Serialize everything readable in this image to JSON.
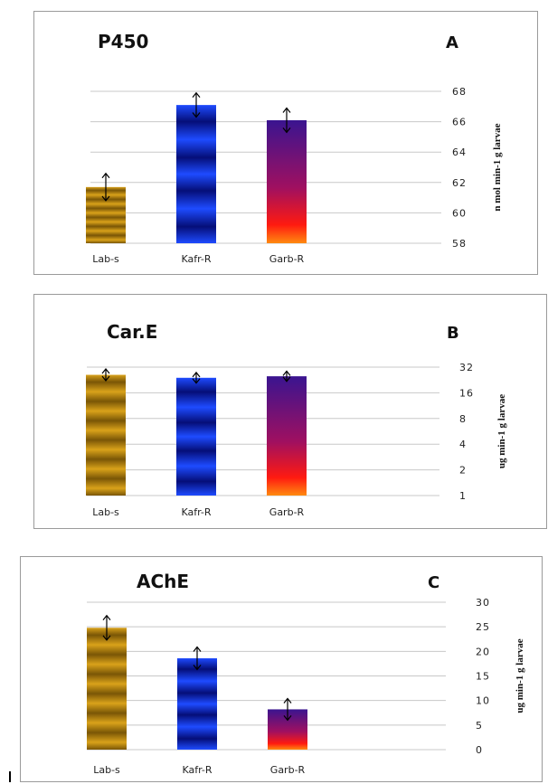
{
  "chart_data": [
    {
      "type": "bar",
      "title": "P450",
      "panel_letter": "A",
      "categories": [
        "Lab-s",
        "Kafr-R",
        "Garb-R"
      ],
      "values": [
        61.7,
        67.1,
        66.1
      ],
      "errors": [
        0.9,
        0.8,
        0.8
      ],
      "ylabel": "n mol min-1 g larvae",
      "ylim": [
        58,
        68
      ],
      "yticks": [
        "58",
        "60",
        "62",
        "64",
        "66",
        "68"
      ],
      "yscale": "linear",
      "grid": true,
      "fills": [
        "gold-banded",
        "blue-banded",
        "purple-red-gradient"
      ],
      "colors": {
        "gold": "#d9a21a",
        "gold_dark": "#7a5606",
        "blue": "#1e4bff",
        "blue_dark": "#050e78",
        "purple": "#3a1490",
        "red": "#ff1a10",
        "orange": "#ff8a10"
      }
    },
    {
      "type": "bar",
      "title": "Car.E",
      "panel_letter": "B",
      "categories": [
        "Lab-s",
        "Kafr-R",
        "Garb-R"
      ],
      "values": [
        26,
        24,
        25
      ],
      "errors": [
        6,
        5,
        5
      ],
      "ylabel": "ug min-1 g larvae",
      "ylim": [
        1,
        32
      ],
      "yticks": [
        "1",
        "2",
        "4",
        "8",
        "16",
        "32"
      ],
      "yscale": "log2",
      "grid": true,
      "fills": [
        "gold-banded",
        "blue-banded",
        "purple-red-gradient"
      ]
    },
    {
      "type": "bar",
      "title": "AChE",
      "panel_letter": "C",
      "categories": [
        "Lab-s",
        "Kafr-R",
        "Garb-R"
      ],
      "values": [
        24.8,
        18.6,
        8.2
      ],
      "errors": [
        2.5,
        2.3,
        2.2
      ],
      "ylabel": "ug min-1 g larvae",
      "ylim": [
        0,
        30
      ],
      "yticks": [
        "0",
        "5",
        "10",
        "15",
        "20",
        "25",
        "30"
      ],
      "yscale": "linear",
      "grid": true,
      "fills": [
        "gold-banded",
        "blue-banded",
        "purple-red-gradient"
      ]
    }
  ]
}
